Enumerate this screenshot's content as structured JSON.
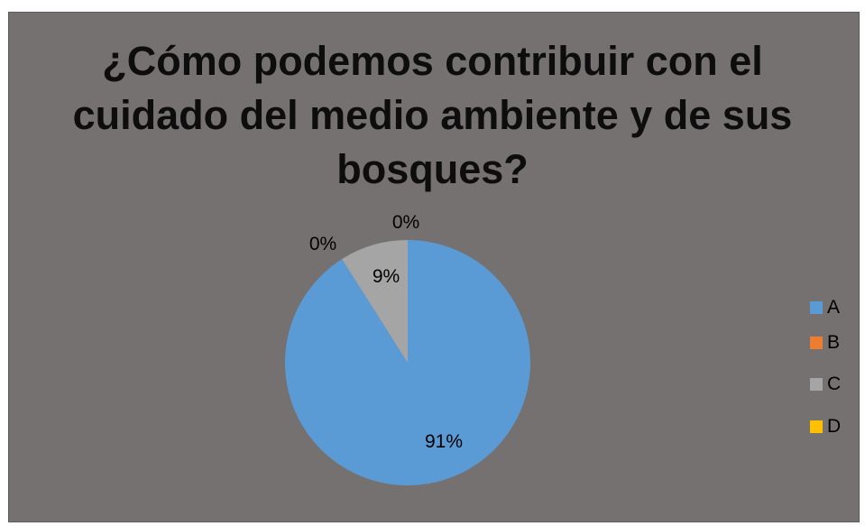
{
  "chart_data": {
    "type": "pie",
    "title_lines": [
      "¿Cómo podemos contribuir con el",
      "cuidado del medio ambiente y de sus",
      "bosques?"
    ],
    "categories": [
      "A",
      "B",
      "C",
      "D"
    ],
    "values": [
      91,
      0,
      9,
      0
    ],
    "data_labels": [
      "91%",
      "0%",
      "9%",
      "0%"
    ],
    "colors": [
      "#5b9bd5",
      "#ed7d31",
      "#a5a5a5",
      "#ffc000"
    ],
    "legend_position": "right"
  },
  "background_color": "#767171"
}
